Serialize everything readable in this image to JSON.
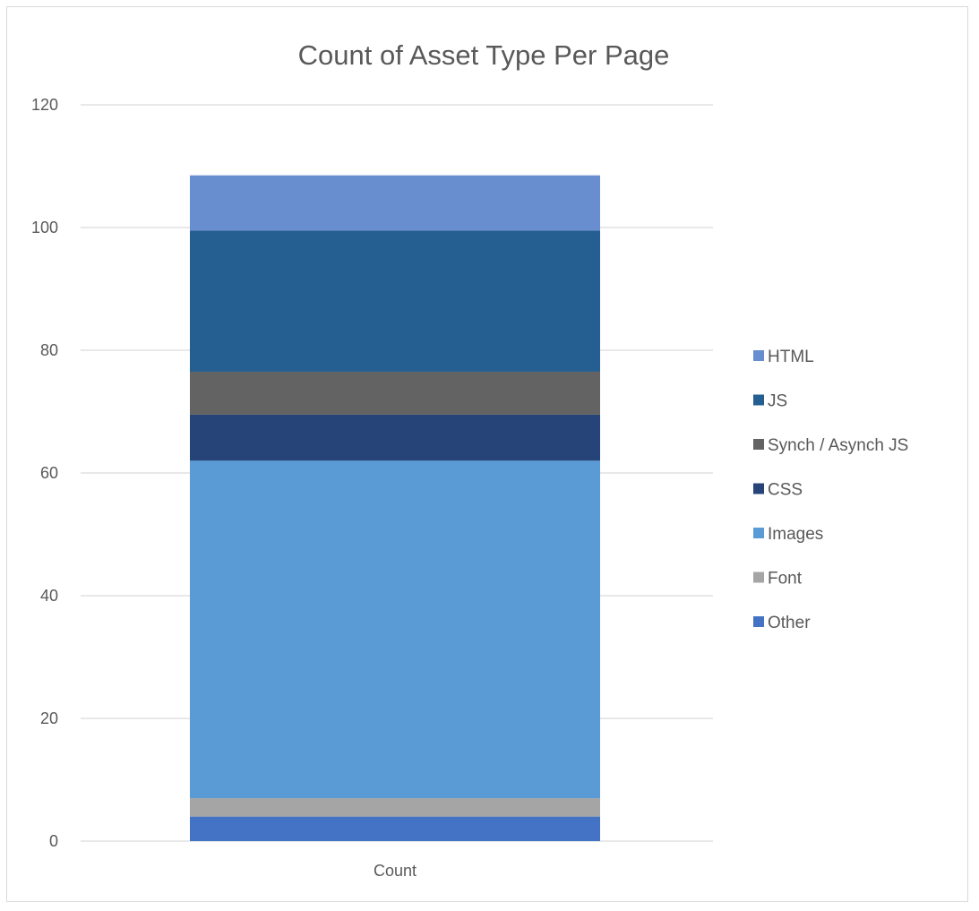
{
  "chart_data": {
    "type": "bar",
    "stacked": true,
    "title": "Count of Asset Type Per Page",
    "categories": [
      "Count"
    ],
    "ylim": [
      0,
      120
    ],
    "y_ticks": [
      0,
      20,
      40,
      60,
      80,
      100,
      120
    ],
    "grid": true,
    "legend_position": "right",
    "series": [
      {
        "name": "Other",
        "values": [
          4
        ],
        "color": "#4472c4"
      },
      {
        "name": "Font",
        "values": [
          3
        ],
        "color": "#a5a5a5"
      },
      {
        "name": "Images",
        "values": [
          55
        ],
        "color": "#5b9bd5"
      },
      {
        "name": "CSS",
        "values": [
          7.5
        ],
        "color": "#264478"
      },
      {
        "name": "Synch / Asynch JS",
        "values": [
          7
        ],
        "color": "#636363"
      },
      {
        "name": "JS",
        "values": [
          23
        ],
        "color": "#255e91"
      },
      {
        "name": "HTML",
        "values": [
          9
        ],
        "color": "#698ed0"
      }
    ],
    "legend_order": [
      "HTML",
      "JS",
      "Synch / Asynch JS",
      "CSS",
      "Images",
      "Font",
      "Other"
    ]
  }
}
